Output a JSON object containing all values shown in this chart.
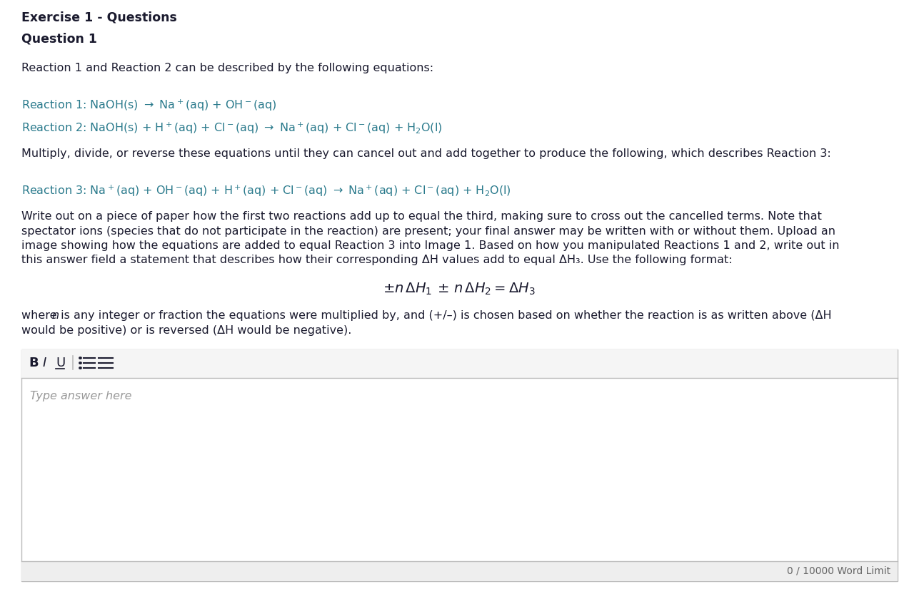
{
  "background_color": "#ffffff",
  "title1": "Exercise 1 - Questions",
  "title2": "Question 1",
  "intro_text": "Reaction 1 and Reaction 2 can be described by the following equations:",
  "middle_text": "Multiply, divide, or reverse these equations until they can cancel out and add together to produce the following, which describes Reaction 3:",
  "body_lines": [
    "Write out on a piece of paper how the first two reactions add up to equal the third, making sure to cross out the cancelled terms. Note that",
    "spectator ions (species that do not participate in the reaction) are present; your final answer may be written with or without them. Upload an",
    "image showing how the equations are added to equal Reaction 3 into Image 1. Based on how you manipulated Reactions 1 and 2, write out in",
    "this answer field a statement that describes how their corresponding ΔH values add to equal ΔH₃. Use the following format:"
  ],
  "placeholder_text": "Type answer here",
  "word_limit": "0 / 10000 Word Limit",
  "text_color": "#1a1a2e",
  "teal_color": "#2a7a8c",
  "box_border_color": "#bbbbbb",
  "toolbar_bg": "#f5f5f5",
  "footer_bg": "#eeeeee",
  "gray_text": "#999999"
}
